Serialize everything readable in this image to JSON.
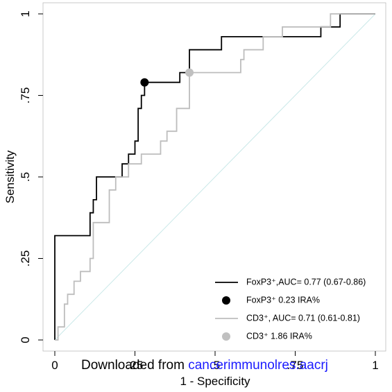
{
  "chart_data": {
    "type": "line",
    "xlabel": "1 - Specificity",
    "ylabel": "Sensitivity",
    "xlim": [
      0,
      1
    ],
    "ylim": [
      0,
      1
    ],
    "xticks": [
      0,
      {
        "value": 0.25,
        "label": ".25"
      },
      {
        "value": 0.5,
        "label": ".5"
      },
      {
        "value": 0.75,
        "label": ".75"
      },
      1
    ],
    "yticks": [
      0,
      {
        "value": 0.25,
        "label": ".25"
      },
      {
        "value": 0.5,
        "label": ".5"
      },
      {
        "value": 0.75,
        "label": ".75"
      },
      1
    ],
    "diagonal_color": "#c9e8e8",
    "legend": "lower right",
    "watermark": [
      "Downloaded from ",
      "cancerimmunolres.aacrj"
    ],
    "series": [
      {
        "name": "FoxP3⁺,AUC= 0.77 (0.67-0.86)",
        "mode": "line",
        "color": "#000000",
        "x": [
          0,
          0,
          0.11,
          0.11,
          0.12,
          0.12,
          0.13,
          0.13,
          0.21,
          0.21,
          0.23,
          0.23,
          0.25,
          0.25,
          0.26,
          0.26,
          0.27,
          0.27,
          0.28,
          0.28,
          0.39,
          0.39,
          0.42,
          0.42,
          0.52,
          0.52,
          0.83,
          0.83,
          0.89,
          0.89,
          1
        ],
        "values": [
          0,
          0.32,
          0.32,
          0.39,
          0.39,
          0.43,
          0.43,
          0.5,
          0.5,
          0.54,
          0.54,
          0.57,
          0.57,
          0.61,
          0.61,
          0.71,
          0.71,
          0.75,
          0.75,
          0.79,
          0.79,
          0.82,
          0.82,
          0.89,
          0.89,
          0.93,
          0.93,
          0.96,
          0.96,
          1,
          1
        ]
      },
      {
        "name": "FoxP3⁺ 0.23 IRA%",
        "mode": "marker",
        "color": "#000000",
        "x": [
          0.28
        ],
        "values": [
          0.79
        ]
      },
      {
        "name": "CD3⁺, AUC= 0.71 (0.61-0.81)",
        "mode": "line",
        "color": "#bdbdbd",
        "x": [
          0,
          0.01,
          0.01,
          0.03,
          0.03,
          0.04,
          0.04,
          0.06,
          0.06,
          0.08,
          0.08,
          0.11,
          0.11,
          0.12,
          0.12,
          0.17,
          0.17,
          0.19,
          0.19,
          0.23,
          0.23,
          0.27,
          0.27,
          0.33,
          0.33,
          0.35,
          0.35,
          0.38,
          0.38,
          0.42,
          0.42,
          0.58,
          0.58,
          0.59,
          0.59,
          0.65,
          0.65,
          0.71,
          0.71,
          0.86,
          0.86,
          1
        ],
        "values": [
          0,
          0,
          0.04,
          0.04,
          0.11,
          0.11,
          0.14,
          0.14,
          0.18,
          0.18,
          0.21,
          0.21,
          0.25,
          0.25,
          0.36,
          0.36,
          0.46,
          0.46,
          0.5,
          0.5,
          0.54,
          0.54,
          0.57,
          0.57,
          0.61,
          0.61,
          0.64,
          0.64,
          0.71,
          0.71,
          0.82,
          0.82,
          0.86,
          0.86,
          0.89,
          0.89,
          0.93,
          0.93,
          0.96,
          0.96,
          1,
          1
        ]
      },
      {
        "name": "CD3⁺ 1.86 IRA%",
        "mode": "marker",
        "color": "#c0c0c0",
        "x": [
          0.42
        ],
        "values": [
          0.82
        ]
      }
    ]
  }
}
